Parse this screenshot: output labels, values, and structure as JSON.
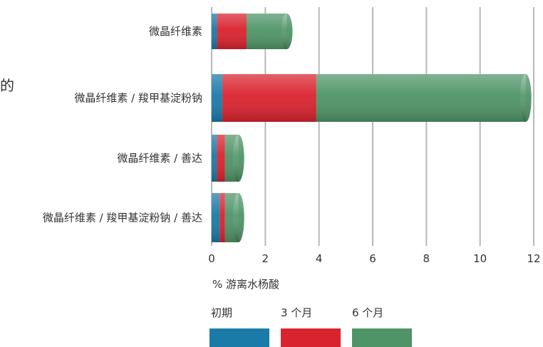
{
  "stray_text": "的",
  "chart_data": {
    "type": "bar",
    "orientation": "horizontal",
    "stacked": true,
    "categories": [
      "微晶纤维素",
      "微晶纤维素 / 羧甲基淀粉钠",
      "微晶纤维素 / 善达",
      "微晶纤维素 / 羧甲基淀粉钠 / 善达"
    ],
    "series": [
      {
        "name": "初期",
        "color": "#1a7aa8",
        "values": [
          0.2,
          0.4,
          0.2,
          0.3
        ]
      },
      {
        "name": "3 个月",
        "color": "#d9232e",
        "values": [
          1.1,
          3.5,
          0.3,
          0.2
        ]
      },
      {
        "name": "6 个月",
        "color": "#4f9467",
        "values": [
          1.5,
          7.8,
          0.5,
          0.5
        ]
      }
    ],
    "xlim": [
      0,
      12
    ],
    "xticks": [
      "0",
      "2",
      "4",
      "6",
      "8",
      "10",
      "12"
    ],
    "xlabel": "% 游离水杨酸",
    "grid": true,
    "legend_position": "bottom"
  }
}
